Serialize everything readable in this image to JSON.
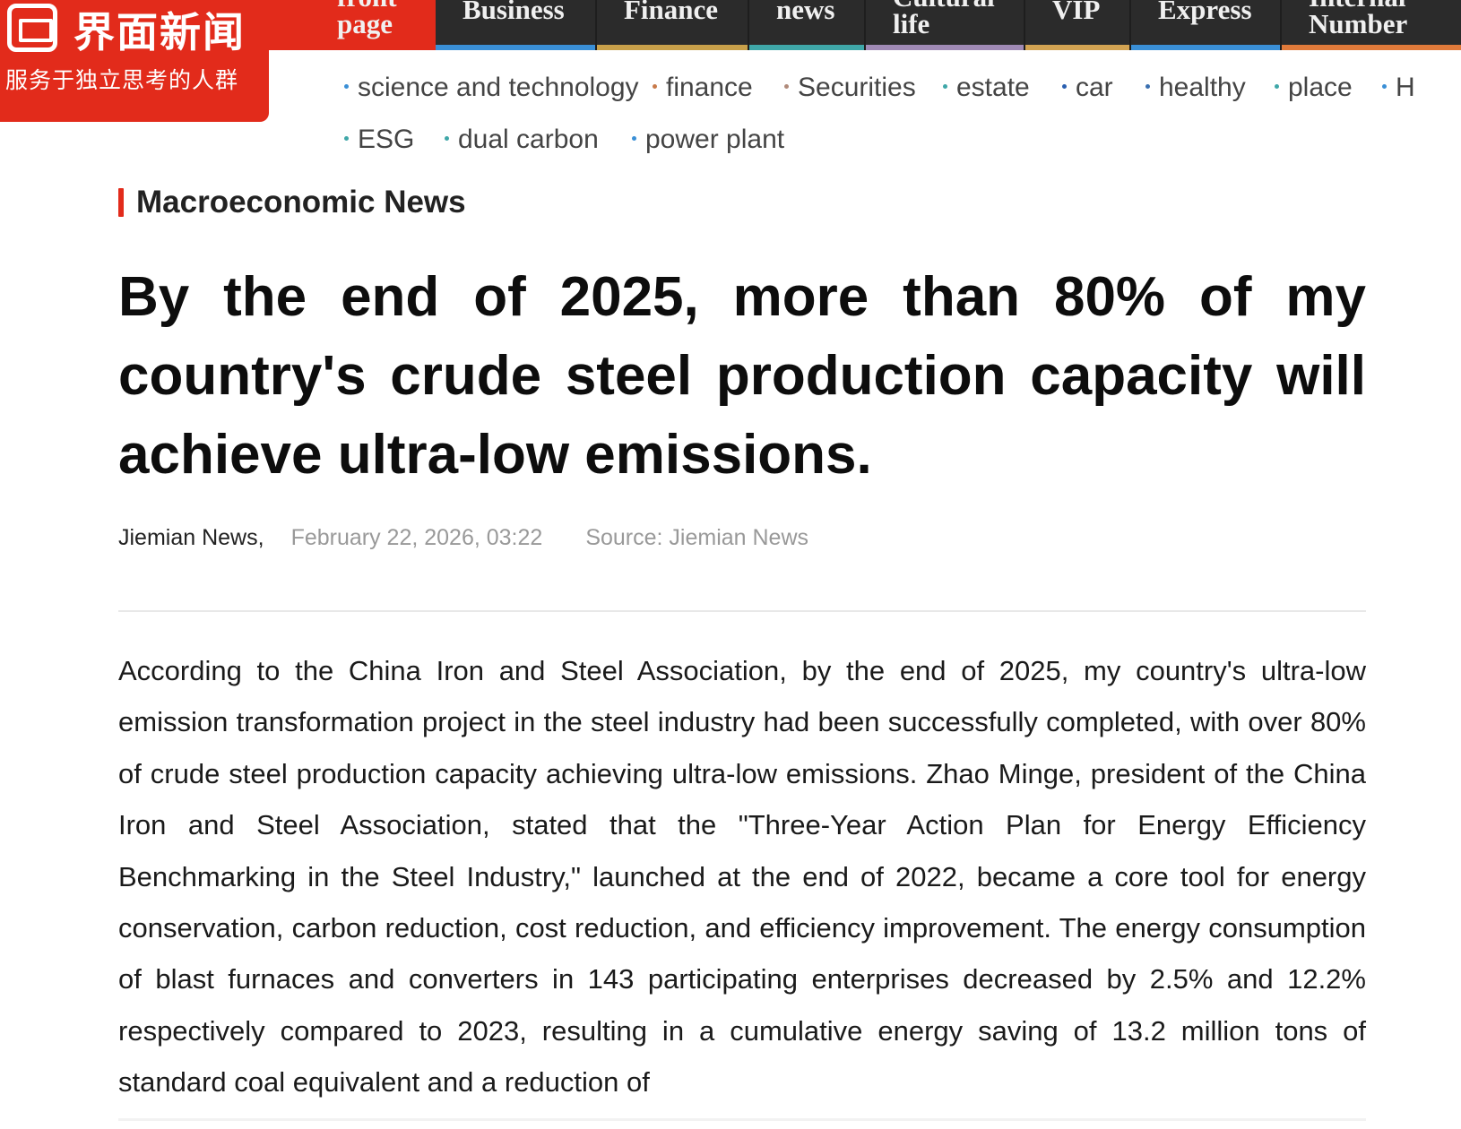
{
  "logo": {
    "name": "界面新闻",
    "slogan": "服务于独立思考的人群"
  },
  "topnav": {
    "items": [
      {
        "label": "front page",
        "active": true,
        "bar_color": "#e22b1b"
      },
      {
        "label": "Business",
        "active": false,
        "bar_color": "#3a8fd6"
      },
      {
        "label": "Finance",
        "active": false,
        "bar_color": "#c8a04a"
      },
      {
        "label": "news",
        "active": false,
        "bar_color": "#3fa7a8"
      },
      {
        "label": "Cultural life",
        "active": false,
        "bar_color": "#a08ab5"
      },
      {
        "label": "VIP",
        "active": false,
        "bar_color": "#d2a352"
      },
      {
        "label": "Express",
        "active": false,
        "bar_color": "#3a8fd6"
      },
      {
        "label": "Internal Number",
        "active": false,
        "bar_color": "#e07a3a"
      }
    ]
  },
  "subnav": {
    "row1": [
      {
        "label": "science and technology",
        "dot_color": "#3a8fd6"
      },
      {
        "label": "finance",
        "dot_color": "#c87a4a"
      },
      {
        "label": "Securities",
        "dot_color": "#b08a7a"
      },
      {
        "label": "estate",
        "dot_color": "#3fa7a8"
      },
      {
        "label": "car",
        "dot_color": "#2a5fb0"
      },
      {
        "label": "healthy",
        "dot_color": "#3a6fb0"
      },
      {
        "label": "place",
        "dot_color": "#3fa7a8"
      },
      {
        "label": "H",
        "dot_color": "#3a8fd6"
      }
    ],
    "row2": [
      {
        "label": "ESG",
        "dot_color": "#3fa7a8"
      },
      {
        "label": "dual carbon",
        "dot_color": "#3fa7a8"
      },
      {
        "label": "power plant",
        "dot_color": "#3a8fd6"
      }
    ]
  },
  "article": {
    "category": "Macroeconomic News",
    "headline": "By the end of 2025, more than 80% of my country's crude steel production capacity will achieve ultra-low emissions.",
    "author": "Jiemian News,",
    "date": "February 22, 2026, 03:22",
    "source": "Source: Jiemian News",
    "body": "According to the China Iron and Steel Association, by the end of 2025, my country's ultra-low emission transformation project in the steel industry had been successfully completed, with over 80% of crude steel production capacity achieving ultra-low emissions. Zhao Minge, president of the China Iron and Steel Association, stated that the \"Three-Year Action Plan for Energy Efficiency Benchmarking in the Steel Industry,\" launched at the end of 2022, became a core tool for energy conservation, carbon reduction, cost reduction, and efficiency improvement. The energy consumption of blast furnaces and converters in 143 participating enterprises decreased by 2.5% and 12.2% respectively compared to 2023, resulting in a cumulative energy saving of 13.2 million tons of standard coal equivalent and a reduction of"
  },
  "colors": {
    "brand_red": "#e22b1b",
    "nav_background": "#2b2b2b",
    "meta_gray": "#999999"
  }
}
